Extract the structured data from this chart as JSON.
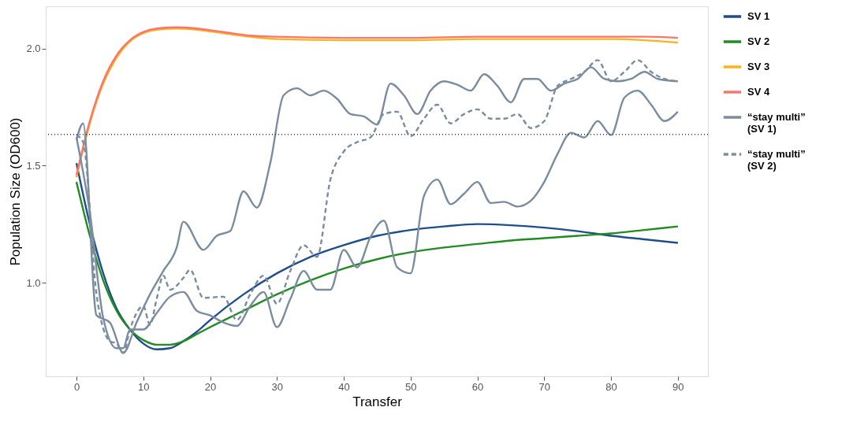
{
  "chart_data": {
    "type": "line",
    "xlabel": "Transfer",
    "ylabel": "Population Size (OD600)",
    "xlim": [
      -4.6,
      94.5
    ],
    "ylim": [
      0.6,
      2.18
    ],
    "xticks": [
      0,
      10,
      20,
      30,
      40,
      50,
      60,
      70,
      80,
      90
    ],
    "yticks": [
      {
        "value": 1,
        "label": "1.0"
      },
      {
        "value": 1.5,
        "label": "1.5"
      },
      {
        "value": 2,
        "label": "2.0"
      }
    ],
    "grid": false,
    "legend": "right",
    "marker": "none",
    "ref_lines": [
      {
        "axis": "y",
        "value": 1.633,
        "label": null,
        "color": "#333333",
        "line_style": "dotted"
      }
    ],
    "series": [
      {
        "name": "SV 1",
        "color": "#1f4e8c",
        "line_style": "solid",
        "x": [
          0,
          2,
          4,
          6,
          8,
          10,
          12,
          14,
          16,
          18,
          20,
          25,
          30,
          35,
          40,
          45,
          50,
          55,
          60,
          65,
          70,
          75,
          80,
          85,
          90
        ],
        "values": [
          1.51,
          1.25,
          1.04,
          0.89,
          0.8,
          0.74,
          0.715,
          0.72,
          0.75,
          0.79,
          0.84,
          0.95,
          1.04,
          1.11,
          1.16,
          1.2,
          1.225,
          1.24,
          1.25,
          1.245,
          1.235,
          1.22,
          1.2,
          1.185,
          1.17
        ]
      },
      {
        "name": "SV 2",
        "color": "#228b22",
        "line_style": "solid",
        "x": [
          0,
          2,
          4,
          6,
          8,
          10,
          12,
          14,
          16,
          18,
          20,
          25,
          30,
          35,
          40,
          45,
          50,
          55,
          60,
          65,
          70,
          75,
          80,
          85,
          90
        ],
        "values": [
          1.43,
          1.2,
          1.01,
          0.88,
          0.8,
          0.755,
          0.735,
          0.735,
          0.75,
          0.78,
          0.81,
          0.88,
          0.95,
          1.01,
          1.06,
          1.1,
          1.13,
          1.15,
          1.165,
          1.18,
          1.19,
          1.2,
          1.21,
          1.225,
          1.24
        ]
      },
      {
        "name": "SV 3",
        "color": "#ffb31a",
        "line_style": "solid",
        "x": [
          0,
          2,
          4,
          6,
          8,
          10,
          12,
          15,
          18,
          22,
          26,
          30,
          40,
          50,
          60,
          70,
          80,
          85,
          90
        ],
        "values": [
          1.45,
          1.68,
          1.85,
          1.96,
          2.03,
          2.065,
          2.08,
          2.085,
          2.08,
          2.065,
          2.05,
          2.04,
          2.035,
          2.035,
          2.04,
          2.04,
          2.04,
          2.035,
          2.025
        ]
      },
      {
        "name": "SV 4",
        "color": "#f8766d",
        "line_style": "solid",
        "x": [
          0,
          2,
          4,
          6,
          8,
          10,
          12,
          15,
          18,
          22,
          26,
          30,
          40,
          50,
          60,
          70,
          80,
          85,
          90
        ],
        "values": [
          1.46,
          1.69,
          1.86,
          1.97,
          2.035,
          2.07,
          2.085,
          2.09,
          2.085,
          2.07,
          2.055,
          2.05,
          2.045,
          2.045,
          2.05,
          2.05,
          2.05,
          2.05,
          2.045
        ]
      },
      {
        "name": "“stay multi”\n(SV 1)",
        "color": "#7a8ca0",
        "line_style": "solid",
        "x": [
          0,
          1,
          3,
          5,
          7,
          9,
          11,
          13,
          15,
          16,
          19,
          21,
          23,
          25,
          27,
          29,
          31,
          33,
          35,
          37,
          39,
          41,
          43,
          45,
          47,
          49,
          51,
          53,
          55,
          57,
          59,
          61,
          63,
          65,
          67,
          69,
          71,
          73,
          75,
          77,
          79,
          81,
          83,
          85,
          87,
          90
        ],
        "values": [
          1.61,
          1.68,
          0.86,
          0.83,
          0.7,
          0.83,
          0.95,
          1.05,
          1.15,
          1.26,
          1.14,
          1.2,
          1.22,
          1.39,
          1.32,
          1.51,
          1.8,
          1.83,
          1.8,
          1.82,
          1.785,
          1.72,
          1.71,
          1.675,
          1.85,
          1.8,
          1.72,
          1.82,
          1.86,
          1.845,
          1.82,
          1.89,
          1.84,
          1.77,
          1.87,
          1.87,
          1.82,
          1.85,
          1.87,
          1.92,
          1.87,
          1.86,
          1.87,
          1.9,
          1.87,
          1.86
        ]
      },
      {
        "name": null,
        "color": "#7a8ca0",
        "line_style": "solid",
        "x": [
          0,
          2,
          4,
          6,
          7,
          8,
          10,
          12,
          14,
          16,
          18,
          20,
          22,
          24,
          26,
          28,
          30,
          32,
          34,
          36,
          38,
          40,
          42,
          44,
          46,
          48,
          50,
          52,
          54,
          56,
          58,
          60,
          62,
          64,
          66,
          68,
          70,
          72,
          74,
          76,
          78,
          80,
          82,
          84,
          86,
          88,
          90
        ],
        "values": [
          1.62,
          1.3,
          0.85,
          0.72,
          0.72,
          0.8,
          0.8,
          0.87,
          0.94,
          0.96,
          0.88,
          0.86,
          0.83,
          0.815,
          0.9,
          0.96,
          0.81,
          0.93,
          1.05,
          0.97,
          0.97,
          1.14,
          1.065,
          1.195,
          1.265,
          1.065,
          1.04,
          1.37,
          1.44,
          1.335,
          1.38,
          1.43,
          1.34,
          1.345,
          1.325,
          1.35,
          1.43,
          1.55,
          1.64,
          1.62,
          1.69,
          1.63,
          1.79,
          1.82,
          1.76,
          1.69,
          1.73
        ]
      },
      {
        "name": "“stay multi”\n(SV 2)",
        "color": "#7a8ca0",
        "line_style": "dashed",
        "x": [
          0,
          1,
          3,
          5,
          6,
          7,
          8,
          10,
          11,
          12,
          13,
          14,
          16,
          17,
          19,
          22,
          24,
          26,
          28,
          30,
          32,
          34,
          36,
          38,
          40,
          42,
          44,
          46,
          48,
          50,
          52,
          54,
          56,
          58,
          60,
          62,
          64,
          66,
          68,
          70,
          72,
          74,
          76,
          78,
          80,
          82,
          84,
          86,
          88,
          90
        ],
        "values": [
          1.63,
          1.6,
          0.95,
          0.75,
          0.74,
          0.7,
          0.8,
          0.9,
          0.82,
          0.93,
          1.03,
          0.97,
          1.02,
          1.055,
          0.935,
          0.94,
          0.84,
          0.95,
          1.03,
          0.91,
          1.05,
          1.16,
          1.11,
          1.44,
          1.56,
          1.6,
          1.62,
          1.72,
          1.73,
          1.625,
          1.7,
          1.76,
          1.68,
          1.72,
          1.74,
          1.7,
          1.7,
          1.72,
          1.66,
          1.69,
          1.84,
          1.87,
          1.9,
          1.95,
          1.86,
          1.9,
          1.95,
          1.9,
          1.87,
          1.86
        ]
      }
    ]
  }
}
